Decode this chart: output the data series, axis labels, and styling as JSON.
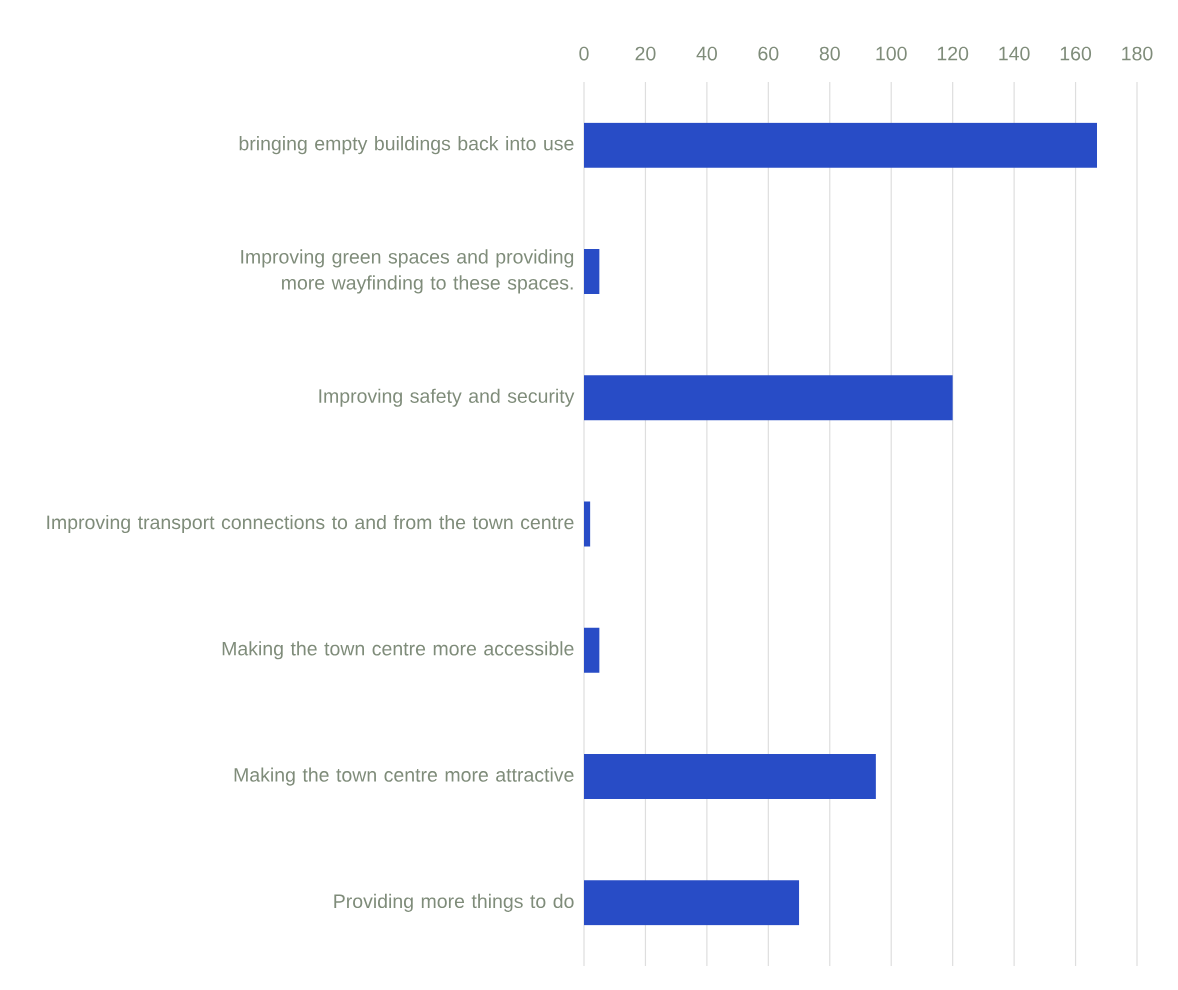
{
  "chart_data": {
    "type": "bar",
    "orientation": "horizontal",
    "categories": [
      "bringing empty buildings back into use",
      "Improving green spaces and providing more wayfinding to these spaces.",
      "Improving safety and security",
      "Improving transport connections to and from the town centre",
      "Making the town centre more accessible",
      "Making the town centre more attractive",
      "Providing more things to do"
    ],
    "values": [
      167,
      5,
      120,
      2,
      5,
      95,
      70
    ],
    "color": "#284cc6",
    "xlim": [
      0,
      180
    ],
    "xticks": [
      0,
      20,
      40,
      60,
      80,
      100,
      120,
      140,
      160,
      180
    ],
    "grid": "x"
  }
}
